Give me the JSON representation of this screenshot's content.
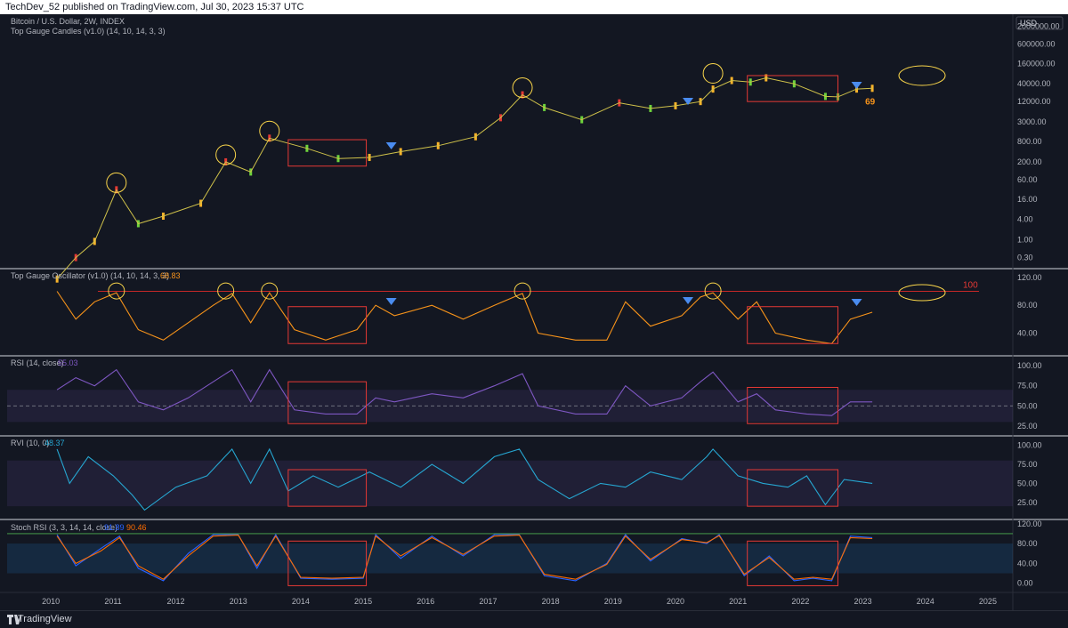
{
  "header": {
    "published": "TechDev_52 published on TradingView.com, Jul 30, 2023 15:37 UTC"
  },
  "footer": {
    "brand": "TradingView"
  },
  "currency_label": "USD",
  "chart_data": [
    {
      "type": "line",
      "pane": "price",
      "title": "Bitcoin / U.S. Dollar, 2W, INDEX",
      "subtitle": "Top Gauge Candles (v1.0) (14, 10, 14, 3, 3)",
      "y_scale": "log",
      "y_ticks": [
        "2000000.00",
        "600000.00",
        "160000.00",
        "40000.00",
        "12000.00",
        "3000.00",
        "800.00",
        "200.00",
        "60.00",
        "16.00",
        "4.00",
        "1.00",
        "0.30"
      ],
      "annotation": "69",
      "series": [
        {
          "x": [
            2010.5,
            2010.8,
            2011.1,
            2011.45,
            2011.8,
            2012.2,
            2012.8,
            2013.2,
            2013.6,
            2013.9,
            2014.5,
            2015.0,
            2015.5,
            2016.0,
            2016.6,
            2017.2,
            2017.6,
            2017.95,
            2018.3,
            2018.9,
            2019.5,
            2020.0,
            2020.4,
            2020.8,
            2021.0,
            2021.3,
            2021.6,
            2021.85,
            2022.3,
            2022.8,
            2023.0,
            2023.3,
            2023.55
          ],
          "values": [
            0.07,
            0.3,
            0.9,
            30,
            3,
            5,
            12,
            200,
            100,
            1000,
            500,
            250,
            270,
            400,
            600,
            1100,
            4000,
            19000,
            8000,
            3500,
            11000,
            7500,
            9000,
            12000,
            28000,
            50000,
            45000,
            60000,
            40000,
            17000,
            16500,
            28000,
            29500
          ]
        }
      ]
    },
    {
      "type": "line",
      "pane": "oscillator",
      "title": "Top Gauge Oscillator (v1.0) (14, 10, 14, 3, 3)",
      "current_value": "68.83",
      "y_ticks": [
        "120.00",
        "80.00",
        "40.00"
      ],
      "threshold_label": "100",
      "series": [
        {
          "x": [
            2010.5,
            2010.8,
            2011.1,
            2011.45,
            2011.8,
            2012.2,
            2012.6,
            2013.0,
            2013.3,
            2013.6,
            2013.9,
            2014.3,
            2014.8,
            2015.3,
            2015.6,
            2015.9,
            2016.5,
            2017.0,
            2017.5,
            2017.95,
            2018.2,
            2018.8,
            2019.3,
            2019.6,
            2020.0,
            2020.5,
            2020.8,
            2021.0,
            2021.4,
            2021.7,
            2022.0,
            2022.5,
            2022.9,
            2023.2,
            2023.55
          ],
          "values": [
            100,
            60,
            85,
            98,
            45,
            30,
            55,
            80,
            97,
            55,
            98,
            45,
            30,
            45,
            80,
            65,
            80,
            60,
            80,
            97,
            40,
            30,
            30,
            85,
            50,
            65,
            92,
            98,
            60,
            85,
            40,
            30,
            25,
            60,
            70
          ]
        }
      ]
    },
    {
      "type": "line",
      "pane": "rsi",
      "title": "RSI (14, close)",
      "current_value": "55.03",
      "y_ticks": [
        "100.00",
        "75.00",
        "50.00",
        "25.00"
      ],
      "band": [
        30,
        70
      ],
      "midline": 50,
      "series": [
        {
          "x": [
            2010.5,
            2010.8,
            2011.1,
            2011.45,
            2011.8,
            2012.2,
            2012.6,
            2013.0,
            2013.3,
            2013.6,
            2013.9,
            2014.3,
            2014.8,
            2015.3,
            2015.6,
            2015.9,
            2016.5,
            2017.0,
            2017.5,
            2017.95,
            2018.2,
            2018.8,
            2019.3,
            2019.6,
            2020.0,
            2020.5,
            2020.8,
            2021.0,
            2021.4,
            2021.7,
            2022.0,
            2022.5,
            2022.9,
            2023.2,
            2023.55
          ],
          "values": [
            70,
            85,
            75,
            95,
            55,
            45,
            60,
            80,
            95,
            55,
            95,
            45,
            40,
            40,
            60,
            55,
            65,
            60,
            75,
            90,
            50,
            40,
            40,
            75,
            50,
            60,
            80,
            92,
            55,
            65,
            45,
            40,
            38,
            55,
            55
          ]
        }
      ]
    },
    {
      "type": "line",
      "pane": "rvi",
      "title": "RVI (10, 0)",
      "current_value": "48.37",
      "y_ticks": [
        "100.00",
        "75.00",
        "50.00",
        "25.00"
      ],
      "band": [
        20,
        80
      ],
      "series": [
        {
          "x": [
            2010.5,
            2010.7,
            2011.0,
            2011.4,
            2011.7,
            2011.9,
            2012.4,
            2012.9,
            2013.3,
            2013.6,
            2013.9,
            2014.2,
            2014.6,
            2015.0,
            2015.5,
            2016.0,
            2016.5,
            2017.0,
            2017.5,
            2017.9,
            2018.2,
            2018.7,
            2019.2,
            2019.6,
            2020.0,
            2020.5,
            2020.9,
            2021.0,
            2021.4,
            2021.8,
            2022.2,
            2022.5,
            2022.8,
            2023.1,
            2023.55
          ],
          "values": [
            95,
            50,
            85,
            60,
            35,
            15,
            45,
            60,
            95,
            50,
            95,
            40,
            60,
            45,
            65,
            45,
            75,
            50,
            85,
            95,
            55,
            30,
            50,
            45,
            65,
            55,
            85,
            95,
            60,
            50,
            45,
            60,
            22,
            55,
            50
          ]
        }
      ]
    },
    {
      "type": "line",
      "pane": "stoch_rsi",
      "title": "Stoch RSI (3, 3, 14, 14, close)",
      "values_label": [
        "91.89",
        "90.46"
      ],
      "colors": {
        "k": "#2962ff",
        "d": "#ff6d00"
      },
      "y_ticks": [
        "120.00",
        "80.00",
        "40.00",
        "0.00"
      ],
      "band": [
        20,
        80
      ],
      "series": [
        {
          "x": [
            2010.5,
            2010.8,
            2011.2,
            2011.5,
            2011.8,
            2012.2,
            2012.6,
            2013.0,
            2013.4,
            2013.7,
            2014.0,
            2014.4,
            2014.9,
            2015.4,
            2015.6,
            2016.0,
            2016.5,
            2017.0,
            2017.5,
            2017.9,
            2018.3,
            2018.8,
            2019.3,
            2019.6,
            2020.0,
            2020.5,
            2020.9,
            2021.1,
            2021.5,
            2021.9,
            2022.3,
            2022.6,
            2022.9,
            2023.2,
            2023.55
          ],
          "values": [
            98,
            35,
            70,
            95,
            30,
            5,
            60,
            98,
            98,
            30,
            98,
            10,
            8,
            10,
            98,
            50,
            95,
            55,
            98,
            98,
            15,
            5,
            40,
            98,
            45,
            90,
            80,
            98,
            15,
            55,
            5,
            10,
            5,
            95,
            92
          ]
        },
        {
          "x": [
            2010.5,
            2010.8,
            2011.2,
            2011.5,
            2011.8,
            2012.2,
            2012.6,
            2013.0,
            2013.4,
            2013.7,
            2014.0,
            2014.4,
            2014.9,
            2015.4,
            2015.6,
            2016.0,
            2016.5,
            2017.0,
            2017.5,
            2017.9,
            2018.3,
            2018.8,
            2019.3,
            2019.6,
            2020.0,
            2020.5,
            2020.9,
            2021.1,
            2021.5,
            2021.9,
            2022.3,
            2022.6,
            2022.9,
            2023.2,
            2023.55
          ],
          "values": [
            95,
            40,
            65,
            92,
            35,
            8,
            55,
            95,
            97,
            35,
            95,
            12,
            10,
            12,
            95,
            55,
            92,
            58,
            95,
            97,
            18,
            8,
            38,
            95,
            48,
            88,
            82,
            96,
            18,
            52,
            8,
            12,
            8,
            92,
            90
          ]
        }
      ]
    }
  ],
  "x_axis": {
    "tick_labels": [
      "2010",
      "2011",
      "2012",
      "2013",
      "2014",
      "2015",
      "2016",
      "2017",
      "2018",
      "2019",
      "2020",
      "2021",
      "2022",
      "2023",
      "2024",
      "2025"
    ],
    "range": [
      2009.7,
      2025.8
    ]
  },
  "colors": {
    "background": "#131722",
    "osc_line": "#f7931a",
    "rsi_line": "#7e57c2",
    "rvi_line": "#26a6d1",
    "box": "#e53935",
    "circle": "#f9d54a",
    "marker": "#4a8cf0"
  }
}
